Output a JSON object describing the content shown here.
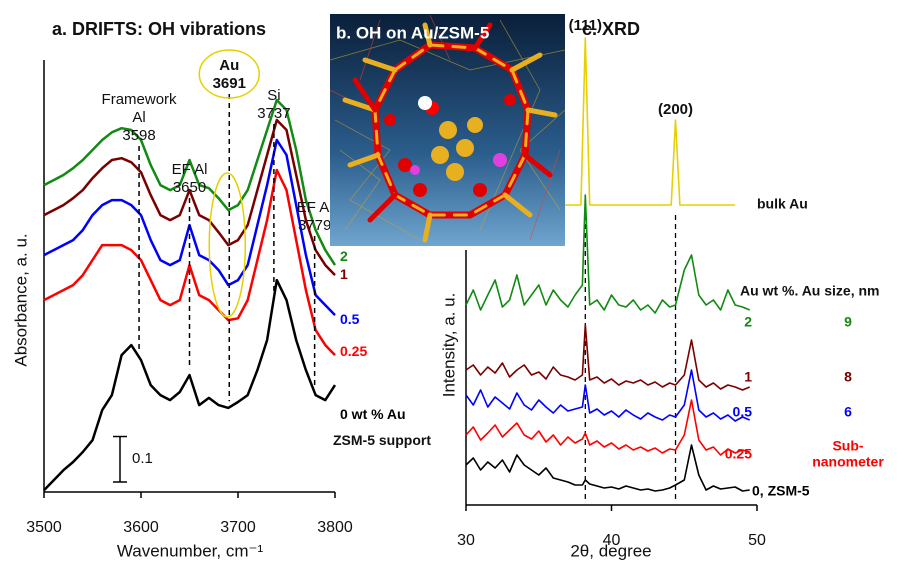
{
  "chart_data": [
    {
      "type": "line",
      "title": "a. DRIFTS: OH vibrations",
      "xlabel": "Wavenumber, cm⁻¹",
      "ylabel": "Absorbance, a. u.",
      "x": [
        3500,
        3510,
        3520,
        3530,
        3540,
        3550,
        3560,
        3570,
        3580,
        3590,
        3600,
        3610,
        3620,
        3630,
        3640,
        3650,
        3660,
        3670,
        3680,
        3690,
        3700,
        3710,
        3720,
        3730,
        3740,
        3750,
        3760,
        3770,
        3780,
        3790,
        3800
      ],
      "xlim": [
        3500,
        3800
      ],
      "xticks": [
        3500,
        3600,
        3700,
        3800
      ],
      "ylim": [
        0,
        0.95
      ],
      "series": [
        {
          "name": "2",
          "color": "#138a13",
          "values": [
            0.675,
            0.686,
            0.697,
            0.712,
            0.73,
            0.752,
            0.774,
            0.791,
            0.8,
            0.796,
            0.774,
            0.719,
            0.675,
            0.664,
            0.675,
            0.73,
            0.675,
            0.668,
            0.646,
            0.62,
            0.631,
            0.664,
            0.73,
            0.796,
            0.862,
            0.84,
            0.752,
            0.642,
            0.576,
            0.532,
            0.499
          ]
        },
        {
          "name": "1",
          "color": "#7a0000",
          "values": [
            0.609,
            0.62,
            0.631,
            0.646,
            0.664,
            0.69,
            0.712,
            0.73,
            0.734,
            0.725,
            0.703,
            0.653,
            0.609,
            0.598,
            0.609,
            0.664,
            0.609,
            0.598,
            0.571,
            0.543,
            0.554,
            0.587,
            0.664,
            0.741,
            0.818,
            0.796,
            0.697,
            0.598,
            0.532,
            0.499,
            0.477
          ]
        },
        {
          "name": "0.5",
          "color": "#0000ff",
          "values": [
            0.521,
            0.532,
            0.543,
            0.554,
            0.576,
            0.609,
            0.631,
            0.642,
            0.642,
            0.631,
            0.609,
            0.554,
            0.51,
            0.499,
            0.51,
            0.587,
            0.521,
            0.51,
            0.488,
            0.455,
            0.466,
            0.499,
            0.587,
            0.675,
            0.774,
            0.741,
            0.631,
            0.521,
            0.433,
            0.411,
            0.389
          ]
        },
        {
          "name": "0.25",
          "color": "#ff0000",
          "values": [
            0.422,
            0.433,
            0.444,
            0.455,
            0.477,
            0.51,
            0.543,
            0.543,
            0.543,
            0.532,
            0.51,
            0.466,
            0.422,
            0.411,
            0.422,
            0.499,
            0.433,
            0.422,
            0.4,
            0.378,
            0.382,
            0.422,
            0.51,
            0.598,
            0.708,
            0.664,
            0.554,
            0.444,
            0.356,
            0.323,
            0.301
          ]
        },
        {
          "name": "0 wt % Au",
          "color": "#000000",
          "values": [
            0.004,
            0.026,
            0.048,
            0.066,
            0.088,
            0.114,
            0.18,
            0.213,
            0.301,
            0.323,
            0.29,
            0.235,
            0.213,
            0.202,
            0.22,
            0.257,
            0.191,
            0.207,
            0.191,
            0.185,
            0.198,
            0.213,
            0.268,
            0.334,
            0.466,
            0.422,
            0.334,
            0.268,
            0.213,
            0.202,
            0.235
          ]
        }
      ],
      "peaks": [
        {
          "label": [
            "Framework",
            "Al"
          ],
          "x": 3598
        },
        {
          "label": [
            "EF Al"
          ],
          "x": 3650
        },
        {
          "label": [
            "Au"
          ],
          "x": 3691
        },
        {
          "label": [
            "Si"
          ],
          "x": 3737
        },
        {
          "label": [
            "EF Al"
          ],
          "x": 3779
        }
      ],
      "scale_bar": 0.1,
      "note": "ZSM-5 support"
    },
    {
      "type": "image",
      "title": "b. OH on Au/ZSM-5"
    },
    {
      "type": "line",
      "title": "c. XRD",
      "xlabel": "2θ, degree",
      "ylabel": "Intensity, a. u.",
      "table_header": "Au wt %. Au size, nm",
      "x": [
        30,
        30.5,
        31,
        31.5,
        32,
        32.5,
        33,
        33.5,
        34,
        34.5,
        35,
        35.5,
        36,
        36.5,
        37,
        37.5,
        38,
        38.2,
        38.5,
        39,
        39.5,
        40,
        40.5,
        41,
        41.5,
        42,
        42.5,
        43,
        43.5,
        44,
        44.4,
        45,
        45.5,
        46,
        46.5,
        47,
        47.5,
        48,
        48.5,
        49,
        49.5
      ],
      "xlim": [
        30,
        50
      ],
      "xticks": [
        30,
        40,
        50
      ],
      "ylim": [
        0,
        475
      ],
      "series": [
        {
          "name": "bulk Au",
          "color": "#e6d000",
          "x": [
            30,
            37.9,
            38.2,
            38.5,
            44.1,
            44.4,
            44.7,
            48.5
          ],
          "values": [
            300,
            300,
            467,
            300,
            300,
            385,
            300,
            300
          ]
        },
        {
          "name": "2",
          "color": "#138a13",
          "size": 9,
          "values": [
            200,
            215,
            195,
            210,
            225,
            198,
            205,
            230,
            200,
            210,
            220,
            200,
            215,
            205,
            198,
            210,
            220,
            310,
            200,
            205,
            195,
            210,
            200,
            198,
            205,
            195,
            200,
            192,
            205,
            198,
            200,
            235,
            250,
            210,
            200,
            205,
            195,
            215,
            200,
            198,
            195
          ]
        },
        {
          "name": "1",
          "color": "#7a0000",
          "size": 8,
          "values": [
            135,
            140,
            130,
            138,
            132,
            142,
            128,
            135,
            140,
            130,
            133,
            126,
            138,
            130,
            128,
            125,
            130,
            180,
            125,
            128,
            122,
            126,
            120,
            124,
            122,
            125,
            120,
            123,
            118,
            122,
            120,
            130,
            165,
            125,
            118,
            122,
            116,
            120,
            118,
            115,
            118
          ]
        },
        {
          "name": "0.5",
          "color": "#0000ff",
          "size": 6,
          "values": [
            110,
            100,
            115,
            98,
            108,
            102,
            96,
            112,
            100,
            95,
            105,
            98,
            92,
            100,
            94,
            96,
            98,
            120,
            92,
            96,
            90,
            94,
            88,
            95,
            90,
            86,
            92,
            88,
            85,
            90,
            88,
            100,
            135,
            95,
            88,
            92,
            86,
            90,
            84,
            88,
            85
          ]
        },
        {
          "name": "0.25",
          "color": "#ff0000",
          "size": [
            "Sub-",
            "nanometer"
          ],
          "values": [
            70,
            78,
            65,
            72,
            80,
            68,
            75,
            82,
            70,
            66,
            74,
            63,
            70,
            60,
            68,
            62,
            66,
            72,
            60,
            64,
            58,
            62,
            56,
            60,
            55,
            58,
            54,
            57,
            52,
            56,
            55,
            70,
            105,
            65,
            55,
            58,
            50,
            56,
            52,
            55,
            53
          ]
        },
        {
          "name": "0, ZSM-5",
          "color": "#000000",
          "values": [
            40,
            47,
            35,
            43,
            37,
            45,
            33,
            50,
            40,
            35,
            30,
            37,
            27,
            25,
            23,
            20,
            20,
            25,
            21,
            19,
            17,
            18,
            16,
            19,
            17,
            15,
            16,
            14,
            15,
            17,
            20,
            25,
            60,
            30,
            15,
            19,
            16,
            17,
            18,
            14,
            15
          ]
        }
      ],
      "peaks": [
        {
          "label": "(111)",
          "x": 38.2
        },
        {
          "label": "(200)",
          "x": 44.4
        }
      ]
    }
  ]
}
